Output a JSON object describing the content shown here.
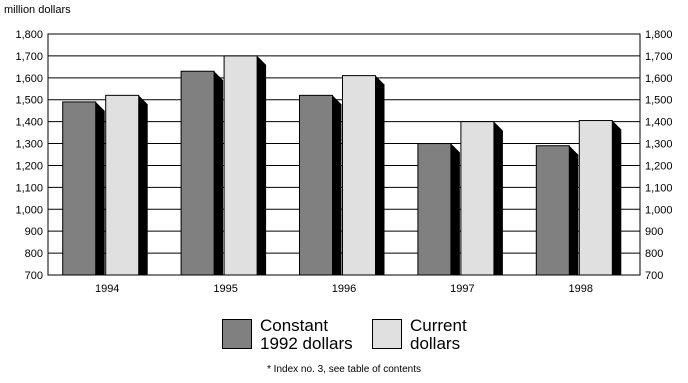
{
  "unit_label": "million dollars",
  "footnote": "* Index no. 3, see table of contents",
  "legend": {
    "constant": {
      "line1": "Constant",
      "line2": "1992 dollars"
    },
    "current": {
      "line1": "Current",
      "line2": "dollars"
    }
  },
  "colors": {
    "constant": "#808080",
    "current": "#e0e0e0",
    "shadow": "#000000"
  },
  "chart_data": {
    "type": "bar",
    "categories": [
      "1994",
      "1995",
      "1996",
      "1997",
      "1998"
    ],
    "series": [
      {
        "name": "Constant 1992 dollars",
        "values": [
          1490,
          1630,
          1520,
          1300,
          1290
        ]
      },
      {
        "name": "Current dollars",
        "values": [
          1520,
          1700,
          1610,
          1400,
          1405
        ]
      }
    ],
    "ylim": [
      700,
      1800
    ],
    "yticks": [
      "700",
      "800",
      "900",
      "1,000",
      "1,100",
      "1,200",
      "1,300",
      "1,400",
      "1,500",
      "1,600",
      "1,700",
      "1,800"
    ],
    "ylabel": "million dollars",
    "grid": true,
    "legend_position": "bottom"
  }
}
